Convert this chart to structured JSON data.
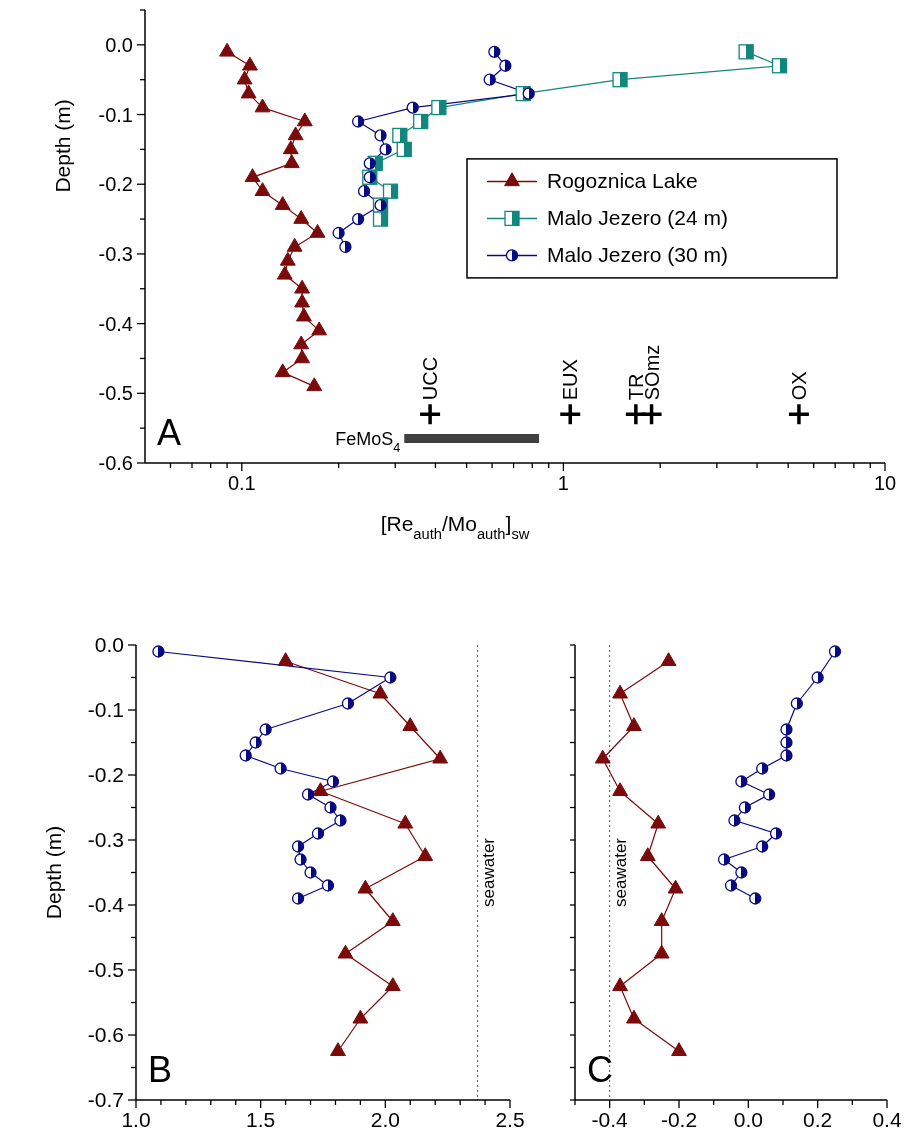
{
  "chart_data": [
    {
      "type": "line",
      "xlabel": "[Re$_{auth}$/Mo$_{auth}$]$_{sw}$",
      "ylabel": "Depth (m)",
      "log": "x",
      "legend": "right",
      "xlim": [
        0.05,
        10
      ],
      "ylim": [
        -0.6,
        0.05
      ],
      "xticks": [
        {
          "value": 0.06,
          "label": null
        },
        {
          "value": 0.07,
          "label": null
        },
        {
          "value": 0.08,
          "label": null
        },
        {
          "value": 0.09,
          "label": null
        },
        0.1,
        {
          "value": 0.2,
          "label": null
        },
        {
          "value": 0.3,
          "label": null
        },
        {
          "value": 0.4,
          "label": null
        },
        {
          "value": 0.5,
          "label": null
        },
        {
          "value": 0.6,
          "label": null
        },
        {
          "value": 0.7,
          "label": null
        },
        {
          "value": 0.8,
          "label": null
        },
        {
          "value": 0.9,
          "label": null
        },
        1,
        {
          "value": 2,
          "label": null
        },
        {
          "value": 3,
          "label": null
        },
        {
          "value": 4,
          "label": null
        },
        {
          "value": 5,
          "label": null
        },
        {
          "value": 6,
          "label": null
        },
        {
          "value": 7,
          "label": null
        },
        {
          "value": 8,
          "label": null
        },
        {
          "value": 9,
          "label": null
        },
        10
      ],
      "yticks": [
        {
          "value": 0.05,
          "label": null
        },
        {
          "value": 0,
          "label": "0.0"
        },
        {
          "value": -0.05,
          "label": null
        },
        -0.1,
        {
          "value": -0.15,
          "label": null
        },
        -0.2,
        {
          "value": -0.25,
          "label": null
        },
        -0.3,
        {
          "value": -0.35,
          "label": null
        },
        -0.4,
        {
          "value": -0.45,
          "label": null
        },
        -0.5,
        {
          "value": -0.55,
          "label": null
        },
        -0.6
      ],
      "series": [
        {
          "name": "Rogoznica Lake",
          "type": "line",
          "marker": "triangle",
          "color": "#7b0a0a",
          "x": [
            0.09,
            0.106,
            0.102,
            0.105,
            0.116,
            0.157,
            0.147,
            0.142,
            0.143,
            0.108,
            0.116,
            0.134,
            0.153,
            0.172,
            0.146,
            0.139,
            0.136,
            0.154,
            0.154,
            0.156,
            0.174,
            0.153,
            0.154,
            0.134,
            0.168
          ],
          "values": [
            -0.01,
            -0.03,
            -0.05,
            -0.07,
            -0.09,
            -0.11,
            -0.13,
            -0.15,
            -0.17,
            -0.19,
            -0.21,
            -0.23,
            -0.25,
            -0.27,
            -0.29,
            -0.31,
            -0.33,
            -0.35,
            -0.37,
            -0.39,
            -0.41,
            -0.43,
            -0.45,
            -0.47,
            -0.49
          ]
        },
        {
          "name": "Malo Jezero (24 m)",
          "type": "line",
          "marker": "square",
          "color": "#12877d",
          "x": [
            3.7,
            4.7,
            1.5,
            0.75,
            0.41,
            0.36,
            0.31,
            0.32,
            0.26,
            0.25,
            0.29,
            0.27,
            0.27
          ],
          "values": [
            -0.01,
            -0.03,
            -0.05,
            -0.07,
            -0.09,
            -0.11,
            -0.13,
            -0.15,
            -0.17,
            -0.19,
            -0.21,
            -0.23,
            -0.25
          ]
        },
        {
          "name": "Malo Jezero (30 m)",
          "type": "line",
          "marker": "circle",
          "color": "#0a0a80",
          "x": [
            0.61,
            0.66,
            0.59,
            0.78,
            0.34,
            0.23,
            0.27,
            0.28,
            0.25,
            0.25,
            0.24,
            0.27,
            0.23,
            0.2,
            0.21
          ],
          "values": [
            -0.01,
            -0.03,
            -0.05,
            -0.07,
            -0.09,
            -0.11,
            -0.13,
            -0.15,
            -0.17,
            -0.19,
            -0.21,
            -0.23,
            -0.25,
            -0.27,
            -0.29
          ]
        },
        {
          "type": "scatter",
          "marker": "cross",
          "color": "#000000",
          "x": [
            0.385,
            1.05,
            1.68,
            1.88,
            5.4
          ],
          "values": [
            -0.53,
            -0.53,
            -0.53,
            -0.53,
            -0.53
          ]
        },
        {
          "type": "line",
          "marker": "none",
          "color": "#404040",
          "x": [
            0.32,
            0.84
          ],
          "values": [
            -0.565,
            -0.565
          ]
        }
      ],
      "annotations": [
        "A",
        {
          "text": "UCC",
          "x": 0.385,
          "y": -0.53
        },
        {
          "text": "EUX",
          "x": 1.05,
          "y": -0.53
        },
        {
          "text": "TR",
          "x": 1.68,
          "y": -0.53
        },
        {
          "text": "SOmz",
          "x": 1.88,
          "y": -0.53
        },
        {
          "text": "OX",
          "x": 5.4,
          "y": -0.53
        },
        {
          "text": "FeMoS$_{4}$",
          "x": 0.32,
          "y": -0.565
        }
      ]
    },
    {
      "type": "line",
      "ylabel": "Depth (m)",
      "xlim": [
        1.0,
        2.5
      ],
      "ylim": [
        -0.7,
        0
      ],
      "xticks": [
        {
          "value": 1,
          "label": "1.0"
        },
        {
          "value": 1.1,
          "label": null
        },
        {
          "value": 1.2,
          "label": null
        },
        {
          "value": 1.3,
          "label": null
        },
        {
          "value": 1.4,
          "label": null
        },
        1.5,
        {
          "value": 1.6,
          "label": null
        },
        {
          "value": 1.7,
          "label": null
        },
        {
          "value": 1.8,
          "label": null
        },
        {
          "value": 1.9,
          "label": null
        },
        {
          "value": 2,
          "label": "2.0"
        },
        {
          "value": 2.1,
          "label": null
        },
        {
          "value": 2.2,
          "label": null
        },
        {
          "value": 2.3,
          "label": null
        },
        {
          "value": 2.4,
          "label": null
        },
        2.5
      ],
      "yticks": [
        {
          "value": 0,
          "label": "0.0"
        },
        {
          "value": -0.05,
          "label": null
        },
        -0.1,
        {
          "value": -0.15,
          "label": null
        },
        -0.2,
        {
          "value": -0.25,
          "label": null
        },
        -0.3,
        {
          "value": -0.35,
          "label": null
        },
        -0.4,
        {
          "value": -0.45,
          "label": null
        },
        -0.5,
        {
          "value": -0.55,
          "label": null
        },
        -0.6,
        {
          "value": -0.65,
          "label": null
        },
        -0.7
      ],
      "series": [
        {
          "type": "line",
          "marker": "triangle",
          "color": "#7b0a0a",
          "x": [
            1.6,
            1.98,
            2.1,
            2.22,
            1.74,
            2.08,
            2.16,
            1.92,
            2.03,
            1.84,
            2.03,
            1.9,
            1.81
          ],
          "values": [
            -0.025,
            -0.075,
            -0.125,
            -0.175,
            -0.225,
            -0.275,
            -0.325,
            -0.375,
            -0.425,
            -0.475,
            -0.525,
            -0.575,
            -0.625
          ]
        },
        {
          "type": "line",
          "marker": "circle",
          "color": "#0a0a80",
          "x": [
            1.09,
            2.02,
            1.85,
            1.52,
            1.48,
            1.44,
            1.58,
            1.79,
            1.69,
            1.78,
            1.82,
            1.73,
            1.65,
            1.66,
            1.7,
            1.77,
            1.65
          ],
          "values": [
            -0.01,
            -0.05,
            -0.09,
            -0.13,
            -0.15,
            -0.17,
            -0.19,
            -0.21,
            -0.23,
            -0.25,
            -0.27,
            -0.29,
            -0.31,
            -0.33,
            -0.35,
            -0.37,
            -0.39
          ]
        }
      ],
      "ref_lines": [
        {
          "axis": "x",
          "value": 2.37,
          "label": "seawater",
          "line_style": "dotted",
          "color": "#555555"
        }
      ],
      "annotations": [
        "B"
      ]
    },
    {
      "type": "line",
      "tick_labels": "x",
      "xlim": [
        -0.5,
        0.4
      ],
      "ylim": [
        -0.7,
        0
      ],
      "xticks": [
        {
          "value": -0.5,
          "label": null
        },
        -0.4,
        {
          "value": -0.3,
          "label": null
        },
        -0.2,
        {
          "value": -0.1,
          "label": null
        },
        {
          "value": 0,
          "label": "0.0"
        },
        {
          "value": 0.1,
          "label": null
        },
        0.2,
        {
          "value": 0.3,
          "label": null
        },
        0.4
      ],
      "yticks": [
        {
          "value": 0,
          "label": null
        },
        {
          "value": -0.05,
          "label": null
        },
        {
          "value": -0.1,
          "label": null
        },
        {
          "value": -0.15,
          "label": null
        },
        {
          "value": -0.2,
          "label": null
        },
        {
          "value": -0.25,
          "label": null
        },
        {
          "value": -0.3,
          "label": null
        },
        {
          "value": -0.35,
          "label": null
        },
        {
          "value": -0.4,
          "label": null
        },
        {
          "value": -0.45,
          "label": null
        },
        {
          "value": -0.5,
          "label": null
        },
        {
          "value": -0.55,
          "label": null
        },
        {
          "value": -0.6,
          "label": null
        },
        {
          "value": -0.65,
          "label": null
        },
        {
          "value": -0.7,
          "label": null
        }
      ],
      "series": [
        {
          "type": "line",
          "marker": "triangle",
          "color": "#7b0a0a",
          "x": [
            -0.23,
            -0.37,
            -0.33,
            -0.42,
            -0.37,
            -0.26,
            -0.29,
            -0.21,
            -0.25,
            -0.25,
            -0.37,
            -0.33,
            -0.2
          ],
          "values": [
            -0.025,
            -0.075,
            -0.125,
            -0.175,
            -0.225,
            -0.275,
            -0.325,
            -0.375,
            -0.425,
            -0.475,
            -0.525,
            -0.575,
            -0.625
          ]
        },
        {
          "type": "line",
          "marker": "circle",
          "color": "#0a0a80",
          "x": [
            0.25,
            0.2,
            0.14,
            0.11,
            0.11,
            0.11,
            0.04,
            -0.02,
            0.06,
            -0.01,
            -0.04,
            0.08,
            0.04,
            -0.07,
            -0.02,
            -0.05,
            0.02
          ],
          "values": [
            -0.01,
            -0.05,
            -0.09,
            -0.13,
            -0.15,
            -0.17,
            -0.19,
            -0.21,
            -0.23,
            -0.25,
            -0.27,
            -0.29,
            -0.31,
            -0.33,
            -0.35,
            -0.37,
            -0.39
          ]
        }
      ],
      "ref_lines": [
        {
          "axis": "x",
          "value": -0.4,
          "label": "seawater",
          "line_style": "dotted",
          "color": "#555555"
        }
      ],
      "annotations": [
        "C"
      ]
    }
  ]
}
